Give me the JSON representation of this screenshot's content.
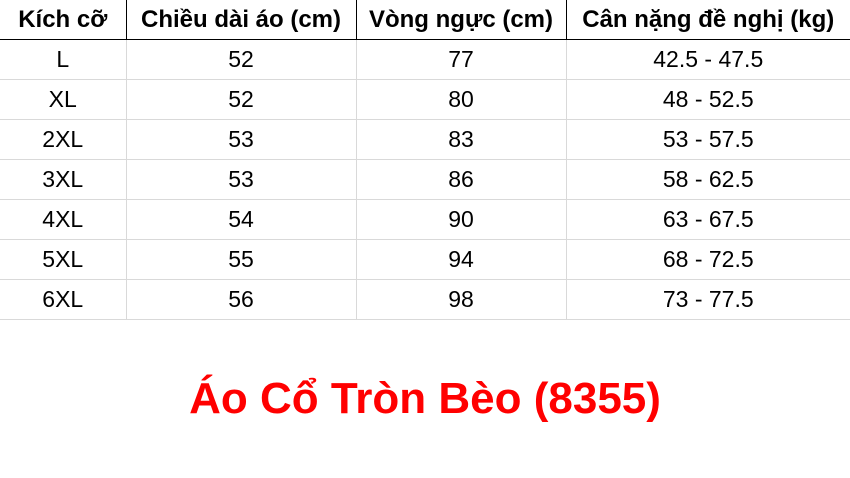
{
  "table": {
    "headers": [
      "Kích cỡ",
      "Chiều dài áo (cm)",
      "Vòng ngực (cm)",
      "Cân nặng đề nghị (kg)"
    ],
    "rows": [
      [
        "L",
        "52",
        "77",
        "42.5 - 47.5"
      ],
      [
        "XL",
        "52",
        "80",
        "48 - 52.5"
      ],
      [
        "2XL",
        "53",
        "83",
        "53 - 57.5"
      ],
      [
        "3XL",
        "53",
        "86",
        "58 - 62.5"
      ],
      [
        "4XL",
        "54",
        "90",
        "63 - 67.5"
      ],
      [
        "5XL",
        "55",
        "94",
        "68 - 72.5"
      ],
      [
        "6XL",
        "56",
        "98",
        "73 - 77.5"
      ]
    ]
  },
  "title": "Áo Cổ Tròn Bèo (8355)",
  "colors": {
    "title": "#ff0000"
  }
}
